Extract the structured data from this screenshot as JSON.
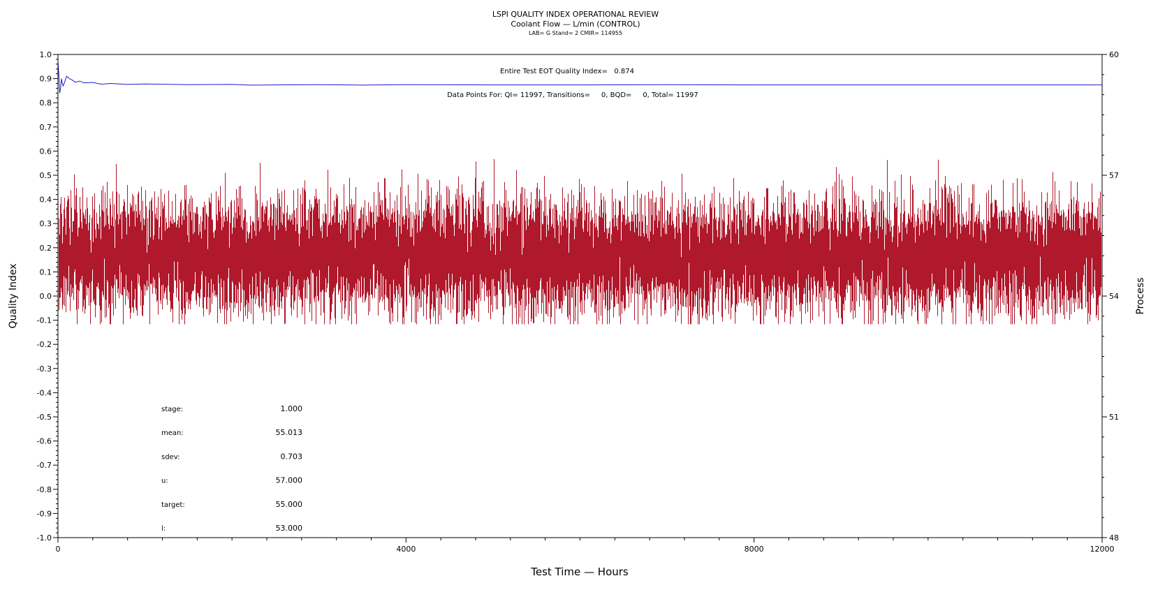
{
  "chart_data": {
    "type": "line",
    "title": "LSPI QUALITY INDEX OPERATIONAL REVIEW",
    "subtitle": "Coolant Flow — L/min (CONTROL)",
    "subtitle2": "LAB= G Stand= 2 CMIR= 114955",
    "xlabel": "Test Time — Hours",
    "ylabel": "Quality Index",
    "y2label": "Process",
    "xlim": [
      0,
      12000
    ],
    "ylim": [
      -1.0,
      1.0
    ],
    "y2lim": [
      48,
      60
    ],
    "x_ticks": [
      "0",
      "4000",
      "8000",
      "12000"
    ],
    "x_tick_values": [
      0,
      4000,
      8000,
      12000
    ],
    "y_ticks": [
      "1.0",
      "0.9",
      "0.8",
      "0.7",
      "0.6",
      "0.5",
      "0.4",
      "0.3",
      "0.2",
      "0.1",
      "0.0",
      "-0.1",
      "-0.2",
      "-0.3",
      "-0.4",
      "-0.5",
      "-0.6",
      "-0.7",
      "-0.8",
      "-0.9",
      "-1.0"
    ],
    "y_tick_values": [
      1.0,
      0.9,
      0.8,
      0.7,
      0.6,
      0.5,
      0.4,
      0.3,
      0.2,
      0.1,
      0.0,
      -0.1,
      -0.2,
      -0.3,
      -0.4,
      -0.5,
      -0.6,
      -0.7,
      -0.8,
      -0.9,
      -1.0
    ],
    "y2_ticks": [
      "60",
      "57",
      "54",
      "51",
      "48"
    ],
    "y2_tick_values": [
      60,
      57,
      54,
      51,
      48
    ],
    "annotations": {
      "eot": "Entire Test EOT Quality Index=   0.874",
      "points": "Data Points For: QI= 11997, Transitions=     0, BQD=     0, Total= 11997"
    },
    "stats": [
      {
        "label": "stage:",
        "value": "1.000"
      },
      {
        "label": "mean:",
        "value": "55.013"
      },
      {
        "label": "sdev:",
        "value": "0.703"
      },
      {
        "label": "u:",
        "value": "57.000"
      },
      {
        "label": "target:",
        "value": "55.000"
      },
      {
        "label": "l:",
        "value": "53.000"
      }
    ],
    "series": [
      {
        "axis": "right",
        "color": "#b0182b",
        "n_points": 11997,
        "mean": 55.013,
        "sdev": 0.703,
        "range": [
          53.3,
          57.5
        ]
      },
      {
        "axis": "left",
        "color": "#1c1cc8",
        "x": [
          0,
          10,
          20,
          30,
          40,
          50,
          60,
          80,
          100,
          130,
          160,
          200,
          250,
          300,
          400,
          500,
          600,
          800,
          1000,
          1500,
          2000,
          2200,
          2500,
          3000,
          3500,
          4000,
          5000,
          6000,
          7000,
          8000,
          9000,
          10000,
          11000,
          12000
        ],
        "y": [
          0.97,
          0.92,
          0.84,
          0.86,
          0.9,
          0.88,
          0.87,
          0.89,
          0.91,
          0.9,
          0.895,
          0.885,
          0.89,
          0.882,
          0.884,
          0.877,
          0.88,
          0.876,
          0.878,
          0.875,
          0.876,
          0.873,
          0.874,
          0.875,
          0.873,
          0.875,
          0.874,
          0.874,
          0.875,
          0.874,
          0.874,
          0.874,
          0.874,
          0.874
        ]
      }
    ]
  }
}
